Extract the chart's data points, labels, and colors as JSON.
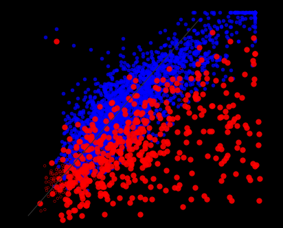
{
  "background_color": "#000000",
  "blue_color": "#0000ff",
  "red_color": "#ff0000",
  "line_color": "#333333",
  "xlim": [
    0,
    50
  ],
  "ylim": [
    0,
    55
  ],
  "seed": 12345,
  "n_blue": 2000,
  "n_red_filled": 350,
  "n_red_open": 500,
  "blue_marker_size": 4,
  "red_filled_marker_size": 6,
  "red_open_marker_size": 2.5
}
